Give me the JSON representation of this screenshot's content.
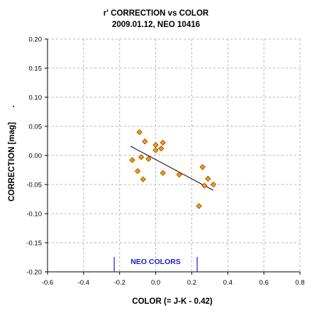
{
  "chart_data": {
    "type": "scatter",
    "title": "r' CORRECTION vs COLOR",
    "subtitle": "2009.01.12, NEO 10416",
    "xlabel": "COLOR (= J-K - 0.42)",
    "ylabel": "CORRECTION [mag]",
    "ylabel_suffix": ".",
    "xlim": [
      -0.6,
      0.8
    ],
    "ylim": [
      -0.2,
      0.2
    ],
    "x_ticks": [
      "-0.6",
      "-0.4",
      "-0.2",
      "0.0",
      "0.2",
      "0.4",
      "0.6",
      "0.8"
    ],
    "y_ticks": [
      "0.20",
      "0.15",
      "0.10",
      "0.05",
      "0.00",
      "-0.05",
      "-0.10",
      "-0.15",
      "-0.20"
    ],
    "grid": true,
    "points": [
      {
        "x": -0.09,
        "y": 0.04
      },
      {
        "x": -0.06,
        "y": 0.024
      },
      {
        "x": -0.13,
        "y": -0.008
      },
      {
        "x": -0.08,
        "y": -0.003
      },
      {
        "x": -0.04,
        "y": -0.006
      },
      {
        "x": -0.1,
        "y": -0.027
      },
      {
        "x": -0.07,
        "y": -0.041
      },
      {
        "x": 0.0,
        "y": 0.018
      },
      {
        "x": 0.0,
        "y": 0.009
      },
      {
        "x": 0.03,
        "y": 0.012
      },
      {
        "x": 0.04,
        "y": 0.022
      },
      {
        "x": 0.04,
        "y": -0.03
      },
      {
        "x": 0.13,
        "y": -0.033
      },
      {
        "x": 0.26,
        "y": -0.02
      },
      {
        "x": 0.27,
        "y": -0.052
      },
      {
        "x": 0.29,
        "y": -0.04
      },
      {
        "x": 0.32,
        "y": -0.05
      },
      {
        "x": 0.24,
        "y": -0.087
      }
    ],
    "trendline": {
      "x": [
        -0.14,
        0.32
      ],
      "y": [
        0.016,
        -0.06
      ]
    },
    "annotation": {
      "text": "NEO COLORS",
      "x_range": [
        -0.23,
        0.23
      ]
    },
    "colors": {
      "marker_fill": "#ff9900",
      "marker_stroke": "#8a4a00",
      "trendline": "#000000",
      "grid": "#b4b4b4",
      "annotation": "#1a1ad6"
    }
  }
}
